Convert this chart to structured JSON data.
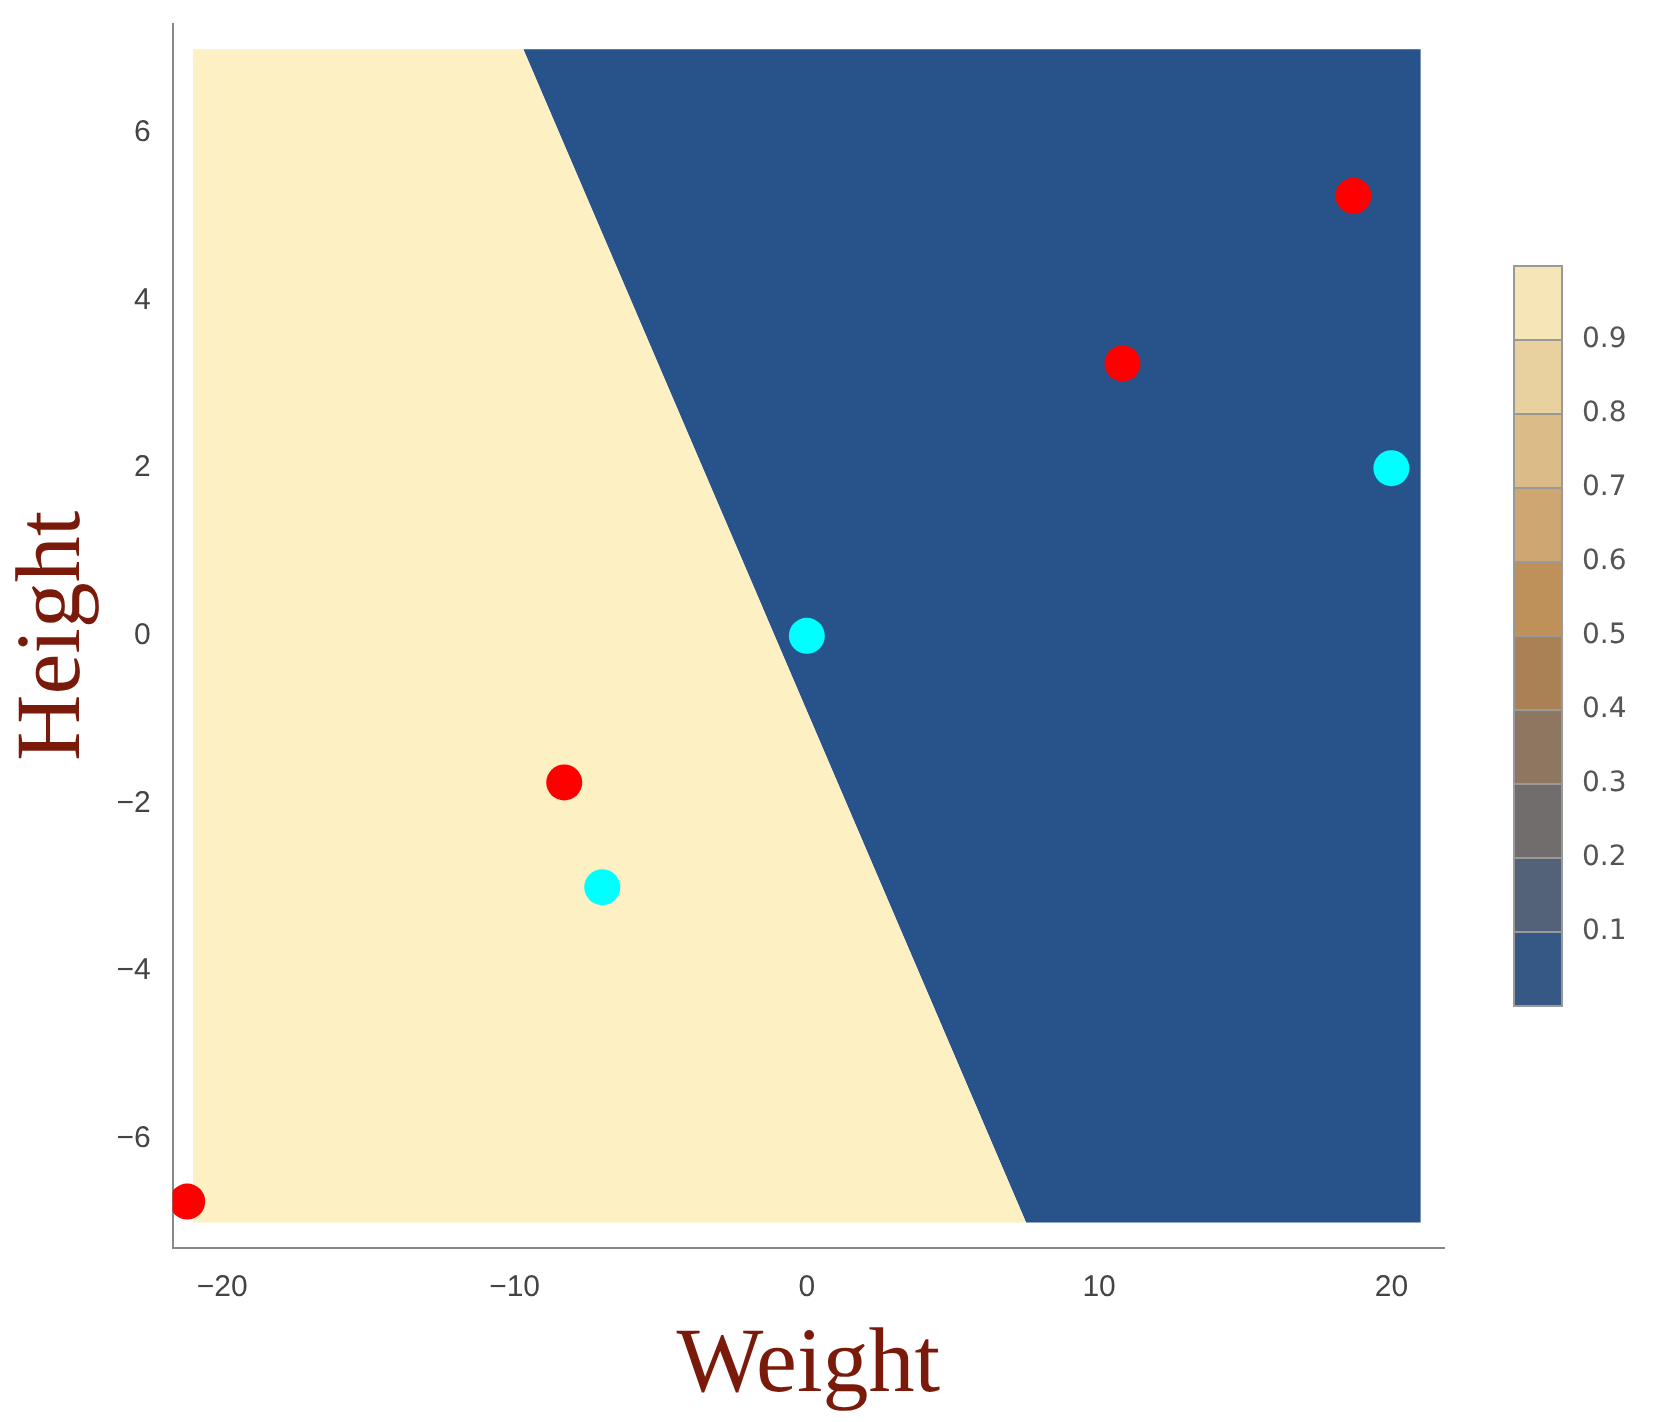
{
  "chart_data": {
    "type": "scatter",
    "xlabel": "Weight",
    "ylabel": "Height",
    "xlim": [
      -21.7,
      21.8
    ],
    "ylim": [
      -7.3,
      7.3
    ],
    "xticks": [
      {
        "value": -20,
        "label": "−20"
      },
      {
        "value": -10,
        "label": "−10"
      },
      0,
      10,
      20
    ],
    "yticks": [
      {
        "value": -6,
        "label": "−6"
      },
      {
        "value": -4,
        "label": "−4"
      },
      {
        "value": -2,
        "label": "−2"
      },
      0,
      2,
      4,
      6
    ],
    "clim": [
      0,
      1
    ],
    "cticks": [
      0.1,
      0.2,
      0.3,
      0.4,
      0.5,
      0.6,
      0.7,
      0.8,
      0.9
    ],
    "grid": false,
    "legend": false,
    "marker": "circle",
    "series": [
      {
        "type": "area",
        "marker": "none",
        "color": "#27538a",
        "x": [
          7.5,
          -9.7,
          21,
          21
        ],
        "values": [
          -7,
          7,
          7,
          -7
        ]
      },
      {
        "type": "area",
        "marker": "none",
        "color": "#fdf0c2",
        "x": [
          -21,
          -21,
          -9.7,
          7.5
        ],
        "values": [
          -7,
          7,
          7,
          -7
        ]
      },
      {
        "color": "#ff0000",
        "x": [
          -21.2,
          -8.3,
          10.8,
          18.7
        ],
        "values": [
          -6.75,
          -1.75,
          3.25,
          5.25
        ]
      },
      {
        "color": "#00ffff",
        "x": [
          0,
          -7,
          20
        ],
        "values": [
          0,
          -3,
          2
        ]
      }
    ]
  }
}
